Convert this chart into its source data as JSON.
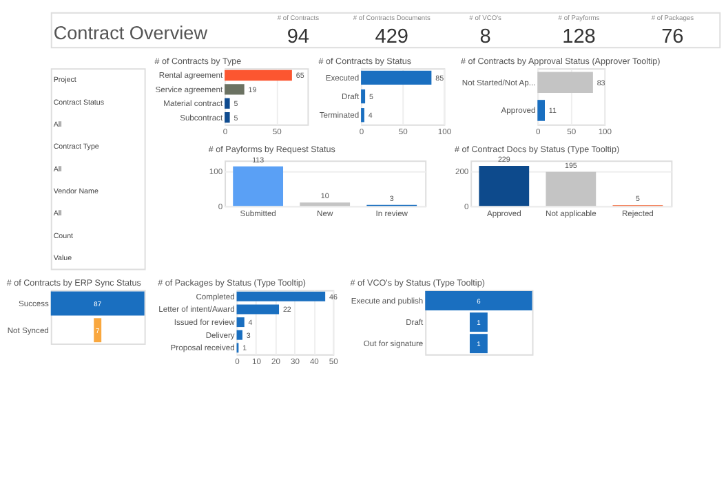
{
  "chart_data": [
    {
      "type": "other",
      "title": "Contract Overview",
      "categories": [
        "# of Contracts",
        "# of Contracts Documents",
        "# of VCO's",
        "# of Payforms",
        "# of Packages"
      ],
      "values": [
        94,
        429,
        8,
        128,
        76
      ],
      "data_labels": true
    },
    {
      "type": "other",
      "annotations": [
        "Project",
        "Contract Status",
        "All",
        "Contract Type",
        "All",
        "Vendor Name",
        "All",
        "Count",
        "Value"
      ]
    },
    {
      "type": "bar",
      "orientation": "horizontal",
      "title": "# of Contracts by Type",
      "categories": [
        "Rental agreement",
        "Service agreement",
        "Material contract",
        "Subcontract"
      ],
      "values": [
        65,
        19,
        5,
        5
      ],
      "colors": [
        "#fc5630",
        "#6b7262",
        "#0f4b8f",
        "#0f4b8f"
      ],
      "xlim": [
        0,
        80
      ],
      "xticks": [
        0,
        50
      ],
      "grid": "x",
      "data_labels": true
    },
    {
      "type": "bar",
      "orientation": "horizontal",
      "title": "# of Contracts by Status",
      "categories": [
        "Executed",
        "Draft",
        "Terminated"
      ],
      "values": [
        85,
        5,
        4
      ],
      "colors": [
        "#1a6fc0",
        "#1a6fc0",
        "#1a6fc0"
      ],
      "xlim": [
        0,
        100
      ],
      "xticks": [
        0,
        50,
        100
      ],
      "grid": "x",
      "data_labels": true
    },
    {
      "type": "bar",
      "orientation": "horizontal",
      "title": "# of Contracts by Approval Status (Approver Tooltip)",
      "categories": [
        "Not Started/Not Ap...",
        "Approved"
      ],
      "values": [
        83,
        11
      ],
      "colors": [
        "#c4c4c4",
        "#1a6fc0"
      ],
      "xlim": [
        0,
        100
      ],
      "xticks": [
        0,
        50,
        100
      ],
      "grid": "x",
      "data_labels": true
    },
    {
      "type": "bar",
      "title": "# of Payforms by Request Status",
      "categories": [
        "Submitted",
        "New",
        "In review"
      ],
      "values": [
        113,
        10,
        3
      ],
      "colors": [
        "#5aa0f5",
        "#c4c4c4",
        "#1a6fc0"
      ],
      "ylim": [
        0,
        130
      ],
      "yticks": [
        0,
        100
      ],
      "grid": "y",
      "data_labels": true
    },
    {
      "type": "bar",
      "title": "# of Contract Docs by Status (Type Tooltip)",
      "categories": [
        "Approved",
        "Not applicable",
        "Rejected"
      ],
      "values": [
        229,
        195,
        5
      ],
      "colors": [
        "#0d4a8c",
        "#c4c4c4",
        "#f4845f"
      ],
      "ylim": [
        0,
        260
      ],
      "yticks": [
        0,
        200
      ],
      "grid": "y",
      "data_labels": true
    },
    {
      "type": "other",
      "title": "# of Contracts by ERP Sync Status",
      "categories": [
        "Success",
        "Not Synced"
      ],
      "values": [
        87,
        7
      ],
      "colors": [
        "#1a6fc0",
        "#f9a73e"
      ],
      "data_labels": true
    },
    {
      "type": "bar",
      "orientation": "horizontal",
      "title": "# of Packages by Status (Type Tooltip)",
      "categories": [
        "Completed",
        "Letter of intent/Award",
        "Issued for review",
        "Delivery",
        "Proposal received"
      ],
      "values": [
        46,
        22,
        4,
        3,
        1
      ],
      "colors": [
        "#1a6fc0",
        "#1a6fc0",
        "#1a6fc0",
        "#1a6fc0",
        "#1a6fc0"
      ],
      "xlim": [
        0,
        50
      ],
      "xticks": [
        0,
        10,
        20,
        30,
        40,
        50
      ],
      "grid": "x",
      "data_labels": true
    },
    {
      "type": "other",
      "title": "# of VCO's by Status (Type Tooltip)",
      "categories": [
        "Execute and publish",
        "Draft",
        "Out for signature"
      ],
      "values": [
        6,
        1,
        1
      ],
      "colors": [
        "#1a6fc0",
        "#1a6fc0",
        "#1a6fc0"
      ],
      "data_labels": true
    }
  ]
}
